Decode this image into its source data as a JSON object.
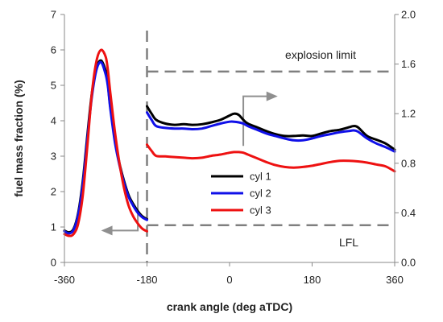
{
  "chart_data": {
    "type": "line",
    "xlabel": "crank angle (deg aTDC)",
    "ylabel_left": "fuel mass fraction (%)",
    "x_range": [
      -360,
      360
    ],
    "x_ticks": [
      -360,
      -180,
      0,
      180,
      360
    ],
    "y_left_range": [
      0,
      7
    ],
    "y_left_ticks": [
      "0",
      "1",
      "2",
      "3",
      "4",
      "5",
      "6",
      "7"
    ],
    "y_right_range": [
      0,
      2
    ],
    "y_right_ticks": [
      "0.0",
      "0.4",
      "0.8",
      "1.2",
      "1.6",
      "2.0"
    ],
    "grid": false,
    "legend_position": "center",
    "series": [
      {
        "name": "cyl 1",
        "color": "#000000",
        "left_axis_part": {
          "x": [
            -360,
            -350,
            -340,
            -330,
            -320,
            -310,
            -300,
            -290,
            -280,
            -270,
            -265,
            -260,
            -250,
            -240,
            -230,
            -220,
            -210,
            -200,
            -190,
            -180
          ],
          "y": [
            0.9,
            0.85,
            0.95,
            1.4,
            2.3,
            3.6,
            4.8,
            5.5,
            5.7,
            5.4,
            5.0,
            4.4,
            3.5,
            2.8,
            2.3,
            1.9,
            1.65,
            1.45,
            1.3,
            1.22
          ]
        },
        "right_axis_part": {
          "x": [
            -180,
            -170,
            -160,
            -140,
            -120,
            -100,
            -80,
            -60,
            -40,
            -20,
            0,
            10,
            20,
            30,
            40,
            60,
            80,
            100,
            120,
            140,
            160,
            180,
            200,
            220,
            240,
            260,
            270,
            280,
            300,
            320,
            340,
            360
          ],
          "y": [
            1.26,
            1.2,
            1.15,
            1.12,
            1.11,
            1.115,
            1.11,
            1.115,
            1.13,
            1.15,
            1.185,
            1.2,
            1.19,
            1.15,
            1.12,
            1.09,
            1.06,
            1.035,
            1.02,
            1.02,
            1.025,
            1.02,
            1.04,
            1.06,
            1.07,
            1.09,
            1.1,
            1.09,
            1.02,
            0.99,
            0.96,
            0.91
          ]
        }
      },
      {
        "name": "cyl 2",
        "color": "#1010e8",
        "left_axis_part": {
          "x": [
            -360,
            -350,
            -340,
            -330,
            -320,
            -310,
            -300,
            -290,
            -280,
            -270,
            -265,
            -260,
            -250,
            -240,
            -230,
            -220,
            -210,
            -200,
            -190,
            -180
          ],
          "y": [
            0.88,
            0.82,
            0.92,
            1.35,
            2.2,
            3.5,
            4.7,
            5.45,
            5.65,
            5.3,
            4.95,
            4.35,
            3.4,
            2.75,
            2.25,
            1.85,
            1.6,
            1.4,
            1.27,
            1.2
          ]
        },
        "right_axis_part": {
          "x": [
            -180,
            -170,
            -160,
            -140,
            -120,
            -100,
            -80,
            -60,
            -40,
            -20,
            0,
            10,
            20,
            30,
            40,
            60,
            80,
            100,
            120,
            140,
            160,
            180,
            200,
            220,
            240,
            260,
            270,
            280,
            300,
            320,
            340,
            360
          ],
          "y": [
            1.21,
            1.15,
            1.1,
            1.085,
            1.08,
            1.08,
            1.075,
            1.08,
            1.1,
            1.12,
            1.135,
            1.135,
            1.13,
            1.12,
            1.1,
            1.07,
            1.04,
            1.02,
            1.0,
            0.985,
            0.985,
            1.0,
            1.02,
            1.035,
            1.05,
            1.06,
            1.065,
            1.055,
            1.0,
            0.96,
            0.93,
            0.895
          ]
        }
      },
      {
        "name": "cyl 3",
        "color": "#ee1111",
        "left_axis_part": {
          "x": [
            -360,
            -350,
            -340,
            -330,
            -320,
            -310,
            -300,
            -290,
            -280,
            -270,
            -265,
            -260,
            -250,
            -240,
            -230,
            -220,
            -210,
            -200,
            -190,
            -180
          ],
          "y": [
            0.8,
            0.75,
            0.8,
            1.1,
            1.9,
            3.3,
            4.8,
            5.7,
            6.0,
            5.8,
            5.4,
            4.8,
            3.7,
            2.8,
            2.1,
            1.6,
            1.3,
            1.1,
            0.95,
            0.88
          ]
        },
        "right_axis_part": {
          "x": [
            -180,
            -170,
            -160,
            -140,
            -120,
            -100,
            -80,
            -60,
            -40,
            -20,
            0,
            10,
            20,
            30,
            40,
            60,
            80,
            100,
            120,
            140,
            160,
            180,
            200,
            220,
            240,
            260,
            280,
            300,
            320,
            340,
            360
          ],
          "y": [
            0.95,
            0.9,
            0.86,
            0.855,
            0.85,
            0.845,
            0.84,
            0.845,
            0.86,
            0.87,
            0.885,
            0.89,
            0.89,
            0.885,
            0.87,
            0.84,
            0.81,
            0.785,
            0.77,
            0.765,
            0.77,
            0.78,
            0.795,
            0.81,
            0.82,
            0.82,
            0.815,
            0.805,
            0.79,
            0.775,
            0.735
          ]
        }
      }
    ],
    "annotations": {
      "explosion_limit": {
        "label": "explosion limit",
        "x_start": -180,
        "y_right": 1.54
      },
      "lfl": {
        "label": "LFL",
        "x_start": -180,
        "y_right": 0.3
      },
      "divider_x": -180,
      "left_arrow": {
        "from_x": -200,
        "from_y_left": 2.0,
        "to_x": -280,
        "to_y_left": 0.9
      },
      "right_arrow": {
        "from_x": 30,
        "from_y_right": 0.94,
        "to_x": 105,
        "to_y_right": 1.34
      }
    },
    "colors": {
      "axis": "#888888",
      "dashed": "#7f7f7f",
      "arrow": "#8f8f8f"
    }
  }
}
